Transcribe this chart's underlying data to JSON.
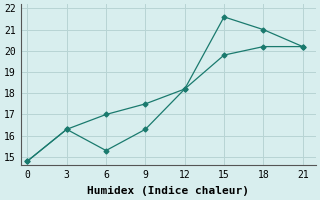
{
  "line1_x": [
    0,
    3,
    6,
    9,
    12,
    15,
    18,
    21
  ],
  "line1_y": [
    14.8,
    16.3,
    15.3,
    16.3,
    18.2,
    21.6,
    21.0,
    20.2
  ],
  "line2_x": [
    0,
    3,
    6,
    9,
    12,
    15,
    18,
    21
  ],
  "line2_y": [
    14.8,
    16.3,
    17.0,
    17.5,
    18.2,
    19.8,
    20.2,
    20.2
  ],
  "line_color": "#1a7a6e",
  "marker": "D",
  "markersize": 2.5,
  "linewidth": 0.9,
  "xlabel": "Humidex (Indice chaleur)",
  "xlim": [
    -0.5,
    22
  ],
  "ylim": [
    14.6,
    22.2
  ],
  "xticks": [
    0,
    3,
    6,
    9,
    12,
    15,
    18,
    21
  ],
  "yticks": [
    15,
    16,
    17,
    18,
    19,
    20,
    21,
    22
  ],
  "bg_color": "#d8eeee",
  "grid_color": "#b8d4d4",
  "font_family": "monospace",
  "xlabel_fontsize": 8,
  "tick_fontsize": 7
}
